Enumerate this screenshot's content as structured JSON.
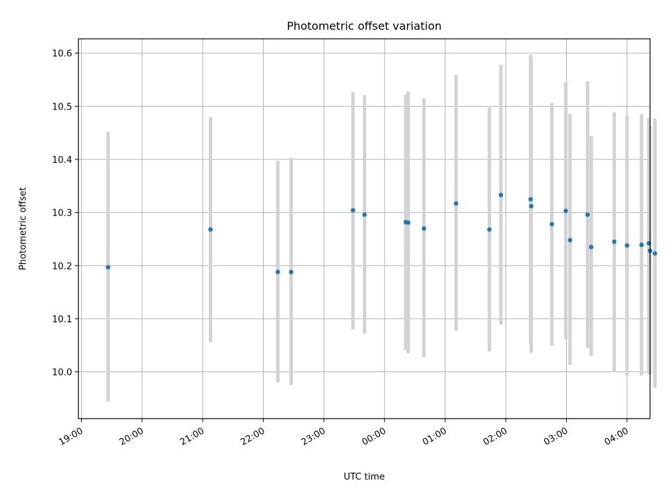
{
  "chart_data": {
    "type": "scatter",
    "title": "Photometric offset variation",
    "xlabel": "UTC time",
    "ylabel": "Photometric offset",
    "x_ticks": [
      "19:00",
      "20:00",
      "21:00",
      "22:00",
      "23:00",
      "00:00",
      "01:00",
      "02:00",
      "03:00",
      "04:00"
    ],
    "x_tick_hours": [
      0,
      1,
      2,
      3,
      4,
      5,
      6,
      7,
      8,
      9
    ],
    "x_range_hours": [
      -0.05,
      9.38
    ],
    "y_ticks": [
      "10.0",
      "10.1",
      "10.2",
      "10.3",
      "10.4",
      "10.5",
      "10.6"
    ],
    "y_tick_values": [
      10.0,
      10.1,
      10.2,
      10.3,
      10.4,
      10.5,
      10.6
    ],
    "ylim": [
      9.912,
      10.627
    ],
    "grid": true,
    "errorbar_color": "#d3d3d3",
    "marker_color": "#1f77b4",
    "series": [
      {
        "x_hours": [
          0.44,
          2.13,
          3.24,
          3.46,
          4.48,
          4.67,
          5.35,
          5.39,
          5.65,
          6.18,
          6.73,
          6.92,
          7.41,
          7.42,
          7.76,
          7.99,
          8.06,
          8.35,
          8.41,
          8.79,
          9.0,
          9.24,
          9.36,
          9.38,
          9.46
        ],
        "y": [
          10.197,
          10.268,
          10.188,
          10.188,
          10.304,
          10.296,
          10.282,
          10.281,
          10.27,
          10.317,
          10.268,
          10.333,
          10.325,
          10.312,
          10.278,
          10.303,
          10.248,
          10.296,
          10.235,
          10.245,
          10.238,
          10.239,
          10.242,
          10.228,
          10.223
        ],
        "y_low": [
          9.944,
          10.056,
          9.98,
          9.975,
          10.08,
          10.072,
          10.041,
          10.035,
          10.028,
          10.077,
          10.038,
          10.089,
          10.053,
          10.036,
          10.049,
          10.061,
          10.013,
          10.045,
          10.03,
          10.0,
          9.993,
          9.993,
          9.995,
          9.995,
          9.97
        ],
        "y_high": [
          10.452,
          10.48,
          10.397,
          10.403,
          10.527,
          10.521,
          10.522,
          10.528,
          10.515,
          10.559,
          10.498,
          10.578,
          10.597,
          10.587,
          10.506,
          10.545,
          10.486,
          10.547,
          10.444,
          10.489,
          10.483,
          10.485,
          10.478,
          10.463,
          10.477
        ]
      }
    ]
  }
}
